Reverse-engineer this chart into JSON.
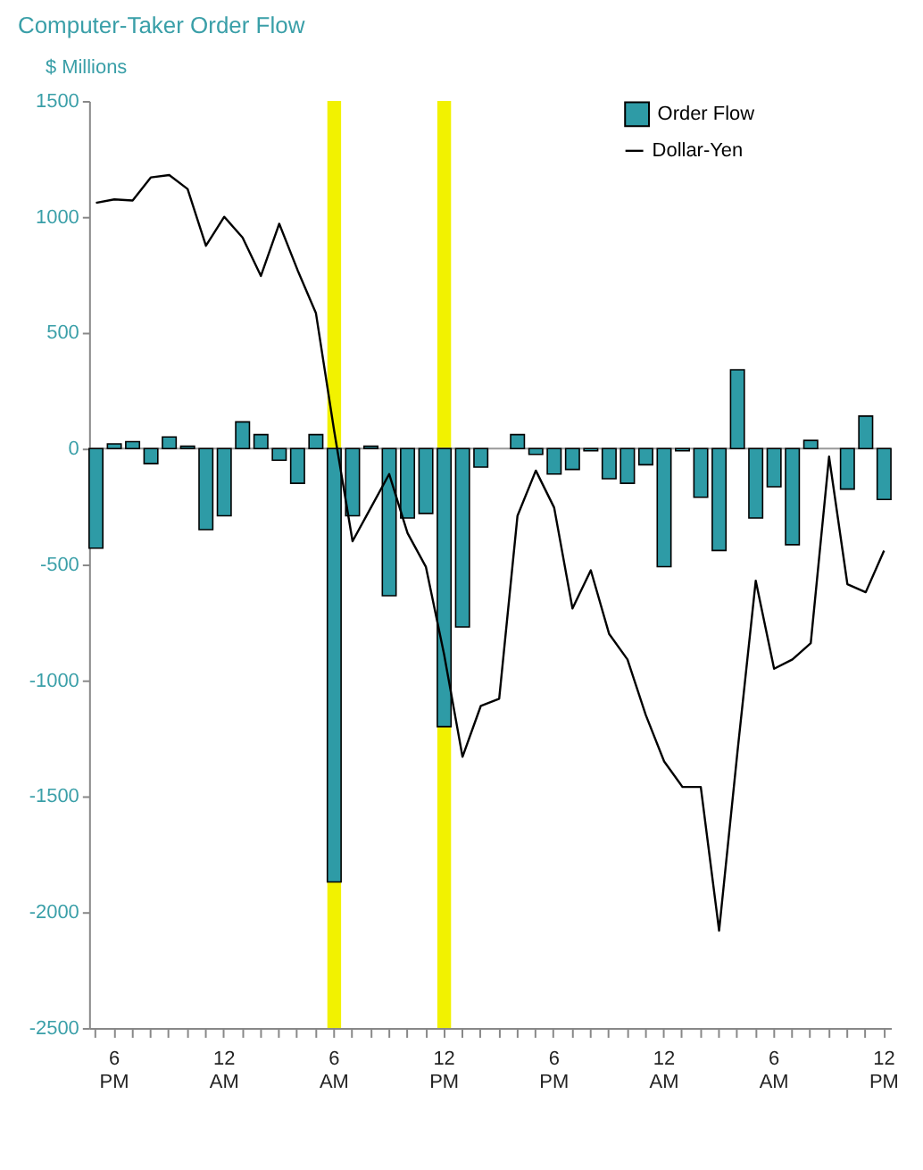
{
  "chart_data": {
    "type": "bar",
    "title": "Computer-Taker Order Flow",
    "ylabel": "$ Millions",
    "categories": [
      null,
      "6 PM",
      null,
      null,
      null,
      null,
      null,
      "12 AM",
      null,
      null,
      null,
      null,
      null,
      "6 AM",
      null,
      null,
      null,
      null,
      null,
      "12 PM",
      null,
      null,
      null,
      null,
      null,
      "6 PM",
      null,
      null,
      null,
      null,
      null,
      "12 AM",
      null,
      null,
      null,
      null,
      null,
      "6 AM",
      null,
      null,
      null,
      null,
      null,
      "12 PM"
    ],
    "ylim": [
      -2500,
      1500
    ],
    "yticks": [
      -2500,
      -2000,
      -1500,
      -1000,
      -500,
      0,
      500,
      1000,
      1500
    ],
    "grid": false,
    "legend": "top right",
    "series": [
      {
        "name": "Order Flow",
        "type": "bar",
        "color": "#2e9ba6",
        "values": [
          -430,
          20,
          30,
          -65,
          50,
          10,
          -350,
          -290,
          115,
          60,
          -50,
          -150,
          60,
          -1870,
          -290,
          10,
          -635,
          -300,
          -280,
          -1200,
          -770,
          -80,
          null,
          60,
          -25,
          -110,
          -90,
          -10,
          -130,
          -150,
          -70,
          -510,
          -10,
          -210,
          -440,
          340,
          -300,
          -165,
          -415,
          35,
          null,
          -175,
          140,
          -220
        ]
      },
      {
        "name": "Dollar-Yen",
        "type": "line",
        "color": "#000000",
        "values": [
          1060,
          1075,
          1070,
          1170,
          1180,
          1120,
          875,
          1000,
          910,
          745,
          970,
          770,
          585,
          75,
          -400,
          -255,
          -110,
          -365,
          -510,
          -890,
          -1330,
          -1110,
          -1080,
          -290,
          -95,
          -255,
          -690,
          -525,
          -800,
          -910,
          -1150,
          -1350,
          -1460,
          -1460,
          -2080,
          -1310,
          -570,
          -950,
          -910,
          -840,
          -35,
          -585,
          -620,
          -440
        ]
      }
    ],
    "bands": [
      {
        "axis": "x",
        "from": "6 AM",
        "to": "6 AM",
        "label": null,
        "color": "#f2f200"
      },
      {
        "axis": "x",
        "from": "12 PM",
        "to": "12 PM",
        "label": null,
        "color": "#f2f200"
      }
    ],
    "ref_lines": [
      {
        "axis": "y",
        "value": 0,
        "label": null,
        "color": "#999999"
      }
    ]
  }
}
